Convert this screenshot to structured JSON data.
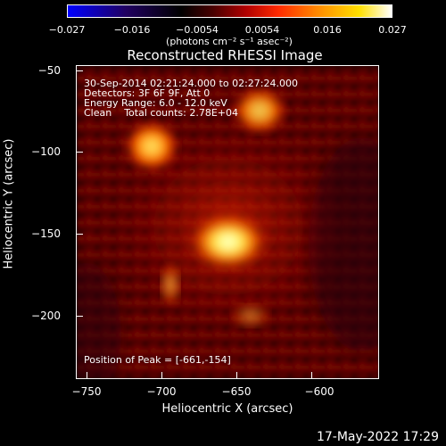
{
  "colorbar": {
    "ticks": [
      "−0.027",
      "−0.016",
      "−0.0054",
      "0.0054",
      "0.016",
      "0.027"
    ],
    "units": "(photons cm⁻² s⁻¹ asec⁻²)",
    "colors": [
      "#0000ff",
      "#000000",
      "#ff0000",
      "#ffff00",
      "#ffffff"
    ]
  },
  "plot": {
    "title": "Reconstructed RHESSI Image",
    "annotations": [
      "30-Sep-2014 02:21:24.000 to 02:27:24.000",
      "Detectors: 3F 6F 9F, Att 0",
      "Energy Range: 6.0 - 12.0 keV",
      "Clean    Total counts: 2.78E+04"
    ],
    "peak": "Position of Peak = [-661,-154]",
    "xlabel": "Heliocentric X (arcsec)",
    "ylabel": "Heliocentric Y (arcsec)",
    "xticks": [
      "−750",
      "−700",
      "−650",
      "−600"
    ],
    "yticks": [
      "−50",
      "−100",
      "−150",
      "−200"
    ]
  },
  "footer": {
    "date": "17-May-2022 17:29"
  }
}
